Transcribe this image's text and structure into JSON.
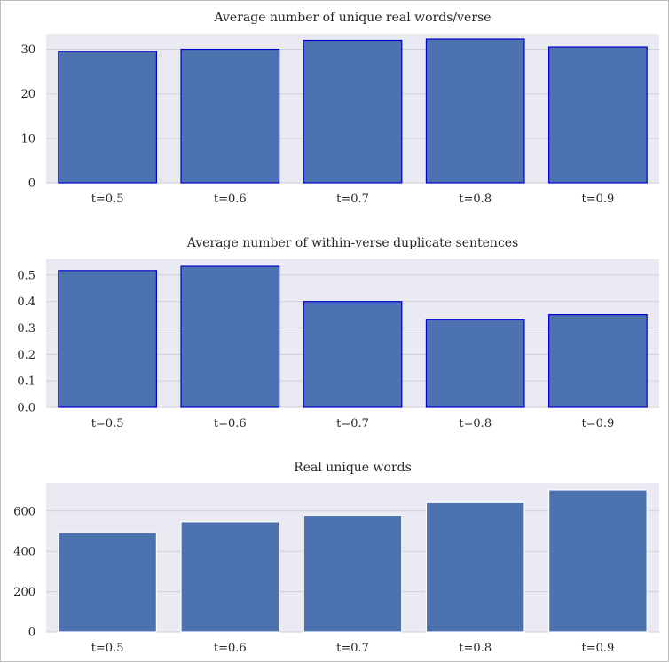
{
  "chart_data": [
    {
      "type": "bar",
      "title": "Average number of unique real words/verse",
      "categories": [
        "t=0.5",
        "t=0.6",
        "t=0.7",
        "t=0.8",
        "t=0.9"
      ],
      "values": [
        29.5,
        30.0,
        32.0,
        32.3,
        30.5
      ],
      "ylim": [
        0,
        33.5
      ],
      "yticks": [
        0,
        10,
        20,
        30
      ],
      "ytick_labels": [
        "0",
        "10",
        "20",
        "30"
      ],
      "grid": true,
      "bar_color": "#4c72b0",
      "bar_edge_color": "#0000cc"
    },
    {
      "type": "bar",
      "title": "Average number of within-verse duplicate sentences",
      "categories": [
        "t=0.5",
        "t=0.6",
        "t=0.7",
        "t=0.8",
        "t=0.9"
      ],
      "values": [
        0.517,
        0.533,
        0.4,
        0.333,
        0.35
      ],
      "ylim": [
        0,
        0.56
      ],
      "yticks": [
        0,
        0.1,
        0.2,
        0.3,
        0.4,
        0.5
      ],
      "ytick_labels": [
        "0.0",
        "0.1",
        "0.2",
        "0.3",
        "0.4",
        "0.5"
      ],
      "grid": true,
      "bar_color": "#4c72b0",
      "bar_edge_color": "#0000cc"
    },
    {
      "type": "bar",
      "title": "Real unique words",
      "categories": [
        "t=0.5",
        "t=0.6",
        "t=0.7",
        "t=0.8",
        "t=0.9"
      ],
      "values": [
        492,
        547,
        580,
        642,
        705
      ],
      "ylim": [
        0,
        740
      ],
      "yticks": [
        0,
        200,
        400,
        600
      ],
      "ytick_labels": [
        "0",
        "200",
        "400",
        "600"
      ],
      "grid": true,
      "bar_color": "#4c72b0",
      "bar_edge_color": "#ffffff"
    }
  ],
  "colors": {
    "plot_background": "#eaeaf2",
    "gridline": "#cfcfd6",
    "text": "#262626"
  }
}
